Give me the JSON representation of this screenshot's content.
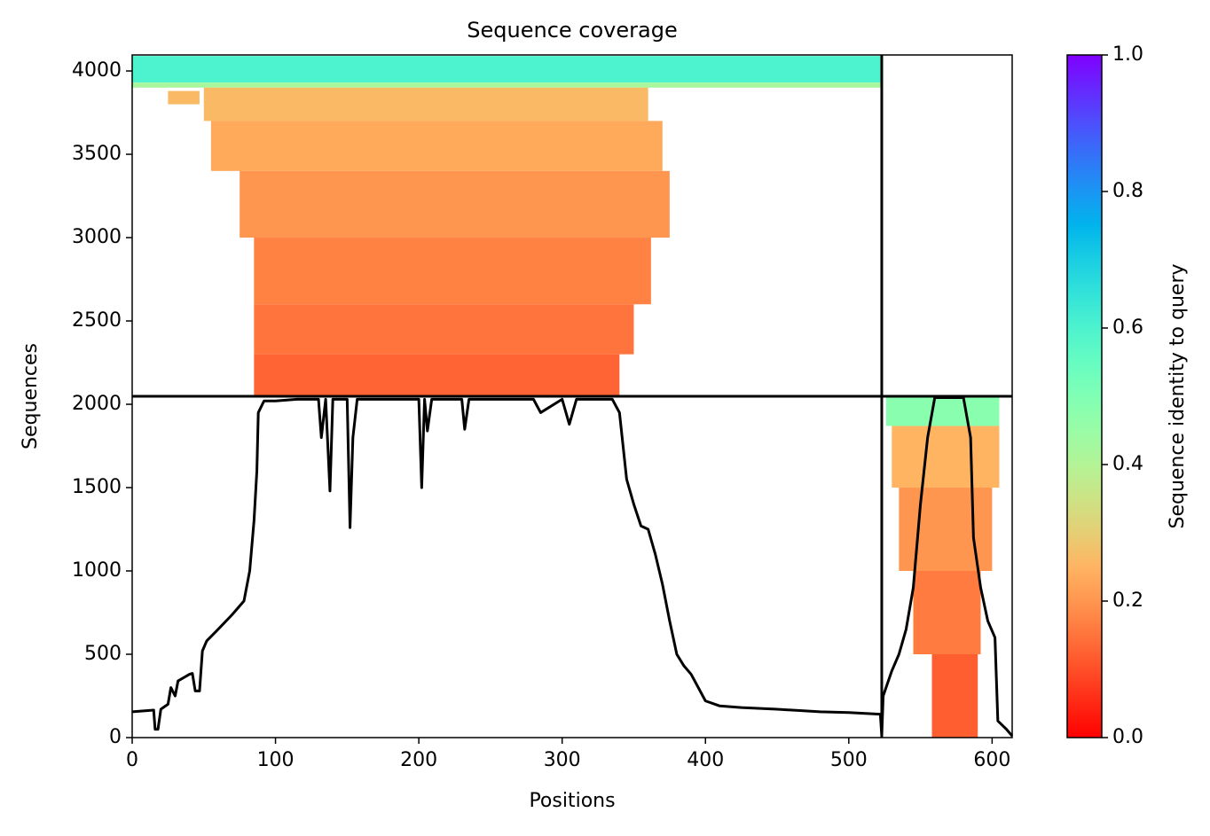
{
  "chart_data": {
    "type": "coverage",
    "title": "Sequence coverage",
    "x_label": "Positions",
    "y_label": "Sequences",
    "xlim": [
      0,
      614
    ],
    "xticks": [
      0,
      100,
      200,
      300,
      400,
      500,
      600
    ],
    "ylim": [
      0,
      4096
    ],
    "yticks": [
      0,
      500,
      1000,
      1500,
      2000,
      2500,
      3000,
      3500,
      4000
    ],
    "dividers": {
      "x": 523,
      "y": 2048
    },
    "colormap": "rainbow_r",
    "blocks": [
      {
        "x": [
          0,
          523
        ],
        "y": [
          3930,
          4090
        ],
        "identity": 0.6
      },
      {
        "x": [
          0,
          523
        ],
        "y": [
          3900,
          3930
        ],
        "identity": 0.42
      },
      {
        "x": [
          50,
          360
        ],
        "y": [
          3700,
          3900
        ],
        "identity": 0.26
      },
      {
        "x": [
          25,
          47
        ],
        "y": [
          3800,
          3880
        ],
        "identity": 0.26
      },
      {
        "x": [
          55,
          370
        ],
        "y": [
          3400,
          3700
        ],
        "identity": 0.23
      },
      {
        "x": [
          75,
          375
        ],
        "y": [
          3000,
          3400
        ],
        "identity": 0.2
      },
      {
        "x": [
          85,
          362
        ],
        "y": [
          2600,
          3000
        ],
        "identity": 0.17
      },
      {
        "x": [
          85,
          350
        ],
        "y": [
          2300,
          2600
        ],
        "identity": 0.15
      },
      {
        "x": [
          85,
          340
        ],
        "y": [
          2050,
          2300
        ],
        "identity": 0.13
      },
      {
        "x": [
          526,
          605
        ],
        "y": [
          1870,
          2040
        ],
        "identity": 0.48
      },
      {
        "x": [
          530,
          605
        ],
        "y": [
          1500,
          1870
        ],
        "identity": 0.25
      },
      {
        "x": [
          535,
          600
        ],
        "y": [
          1000,
          1500
        ],
        "identity": 0.2
      },
      {
        "x": [
          545,
          592
        ],
        "y": [
          500,
          1000
        ],
        "identity": 0.16
      },
      {
        "x": [
          558,
          590
        ],
        "y": [
          0,
          500
        ],
        "identity": 0.12
      }
    ],
    "series": [
      {
        "name": "coverage",
        "color": "#000000",
        "x": [
          0,
          15,
          16,
          18,
          20,
          25,
          27,
          30,
          32,
          40,
          42,
          44,
          47,
          49,
          52,
          60,
          70,
          78,
          82,
          85,
          87,
          88,
          92,
          100,
          115,
          130,
          132,
          135,
          138,
          140,
          150,
          152,
          154,
          157,
          180,
          200,
          202,
          204,
          206,
          209,
          230,
          232,
          235,
          280,
          285,
          300,
          305,
          310,
          335,
          340,
          345,
          350,
          355,
          360,
          365,
          370,
          375,
          380,
          385,
          390,
          400,
          410,
          425,
          450,
          480,
          500,
          522,
          523,
          524,
          530,
          535,
          540,
          545,
          550,
          555,
          560,
          580,
          585,
          587,
          592,
          597,
          602,
          604,
          610,
          614
        ],
        "values": [
          155,
          165,
          50,
          50,
          170,
          200,
          300,
          250,
          340,
          380,
          385,
          280,
          280,
          520,
          580,
          650,
          740,
          820,
          1000,
          1300,
          1600,
          1950,
          2020,
          2020,
          2030,
          2030,
          1800,
          2030,
          1480,
          2030,
          2030,
          1260,
          1800,
          2030,
          2030,
          2030,
          1500,
          2030,
          1840,
          2030,
          2030,
          1850,
          2030,
          2030,
          1950,
          2030,
          1880,
          2030,
          2030,
          1950,
          1550,
          1400,
          1270,
          1250,
          1100,
          920,
          700,
          500,
          430,
          380,
          220,
          190,
          180,
          170,
          155,
          150,
          140,
          10,
          250,
          400,
          500,
          650,
          900,
          1400,
          1800,
          2040,
          2040,
          1800,
          1200,
          900,
          700,
          600,
          100,
          50,
          10
        ]
      }
    ],
    "colorbar": {
      "label": "Sequence identity to query",
      "lim": [
        0,
        1
      ],
      "ticks": [
        {
          "value": 0,
          "label": "0.0"
        },
        0.2,
        0.4,
        0.6,
        0.8,
        {
          "value": 1,
          "label": "1.0"
        }
      ]
    }
  }
}
